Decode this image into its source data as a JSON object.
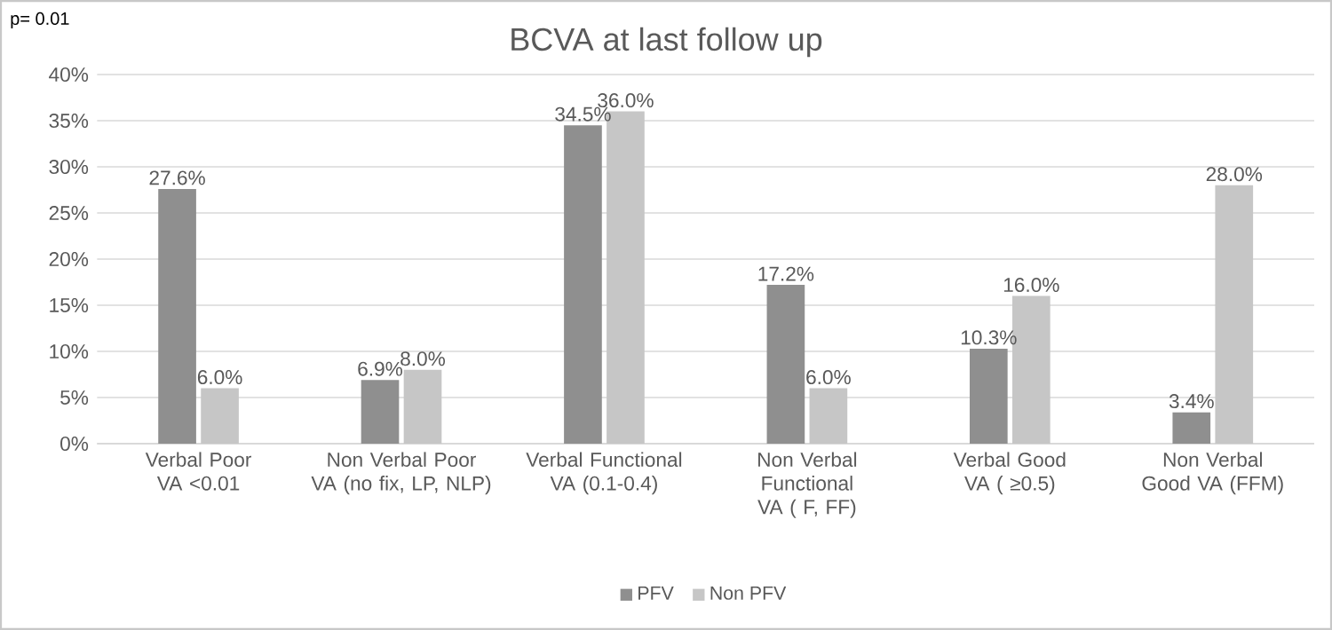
{
  "chart_data": {
    "type": "bar",
    "title": "BCVA at last follow up",
    "annotations": [
      "p= 0.01"
    ],
    "categories": [
      "Verbal Poor VA <0.01",
      "Non Verbal Poor VA (no fix, LP, NLP)",
      "Verbal Functional VA (0.1-0.4)",
      "Non Verbal Functional VA ( F, FF)",
      "Verbal Good VA ( ≥0.5)",
      "Non Verbal Good VA (FFM)"
    ],
    "series": [
      {
        "name": "PFV",
        "color": "#8f8f8f",
        "values": [
          27.6,
          6.9,
          34.5,
          17.2,
          10.3,
          3.4
        ],
        "value_labels": [
          "27.6%",
          "6.9%",
          "34.5%",
          "17.2%",
          "10.3%",
          "3.4%"
        ]
      },
      {
        "name": "Non PFV",
        "color": "#c6c6c6",
        "values": [
          6.0,
          8.0,
          36.0,
          6.0,
          16.0,
          28.0
        ],
        "value_labels": [
          "6.0%",
          "8.0%",
          "36.0%",
          "6.0%",
          "16.0%",
          "28.0%"
        ]
      }
    ],
    "ylim": [
      0,
      40
    ],
    "yticks": [
      {
        "value": 0,
        "label": "0%"
      },
      {
        "value": 5,
        "label": "5%"
      },
      {
        "value": 10,
        "label": "10%"
      },
      {
        "value": 15,
        "label": "15%"
      },
      {
        "value": 20,
        "label": "20%"
      },
      {
        "value": 25,
        "label": "25%"
      },
      {
        "value": 30,
        "label": "30%"
      },
      {
        "value": 35,
        "label": "35%"
      },
      {
        "value": 40,
        "label": "40%"
      }
    ],
    "grid": "y",
    "legend": "bottom"
  }
}
